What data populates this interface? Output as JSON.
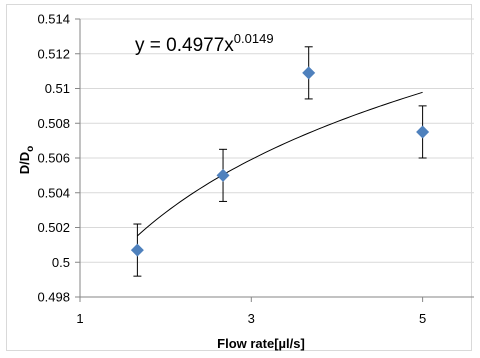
{
  "chart_data": {
    "type": "scatter",
    "title": "",
    "xlabel": "Flow rate[µl/s]",
    "ylabel_main": "D/D",
    "ylabel_sub": "o",
    "equation_main": "y = 0.4977x",
    "equation_exp": "0.0149",
    "xlim": [
      1,
      5.6
    ],
    "ylim": [
      0.498,
      0.514
    ],
    "x_ticks": [
      1,
      3,
      5
    ],
    "x_tick_labels": [
      "1",
      "3",
      "5"
    ],
    "y_ticks": [
      0.498,
      0.5,
      0.502,
      0.504,
      0.506,
      0.508,
      0.51,
      0.512,
      0.514
    ],
    "y_tick_labels": [
      "0.498",
      "0.5",
      "0.502",
      "0.504",
      "0.506",
      "0.508",
      "0.51",
      "0.512",
      "0.514"
    ],
    "grid": "horizontal",
    "series": [
      {
        "x": [
          1.67,
          2.67,
          3.67,
          5.0
        ],
        "y": [
          0.5007,
          0.505,
          0.5109,
          0.5075
        ],
        "error": [
          0.0015,
          0.0015,
          0.0015,
          0.0015
        ],
        "marker": "diamond",
        "color": "#4f81bd"
      }
    ],
    "trendline": {
      "type": "power",
      "a": 0.4977,
      "b": 0.0149,
      "x_range": [
        1.67,
        5.0
      ],
      "color": "#000000"
    }
  }
}
